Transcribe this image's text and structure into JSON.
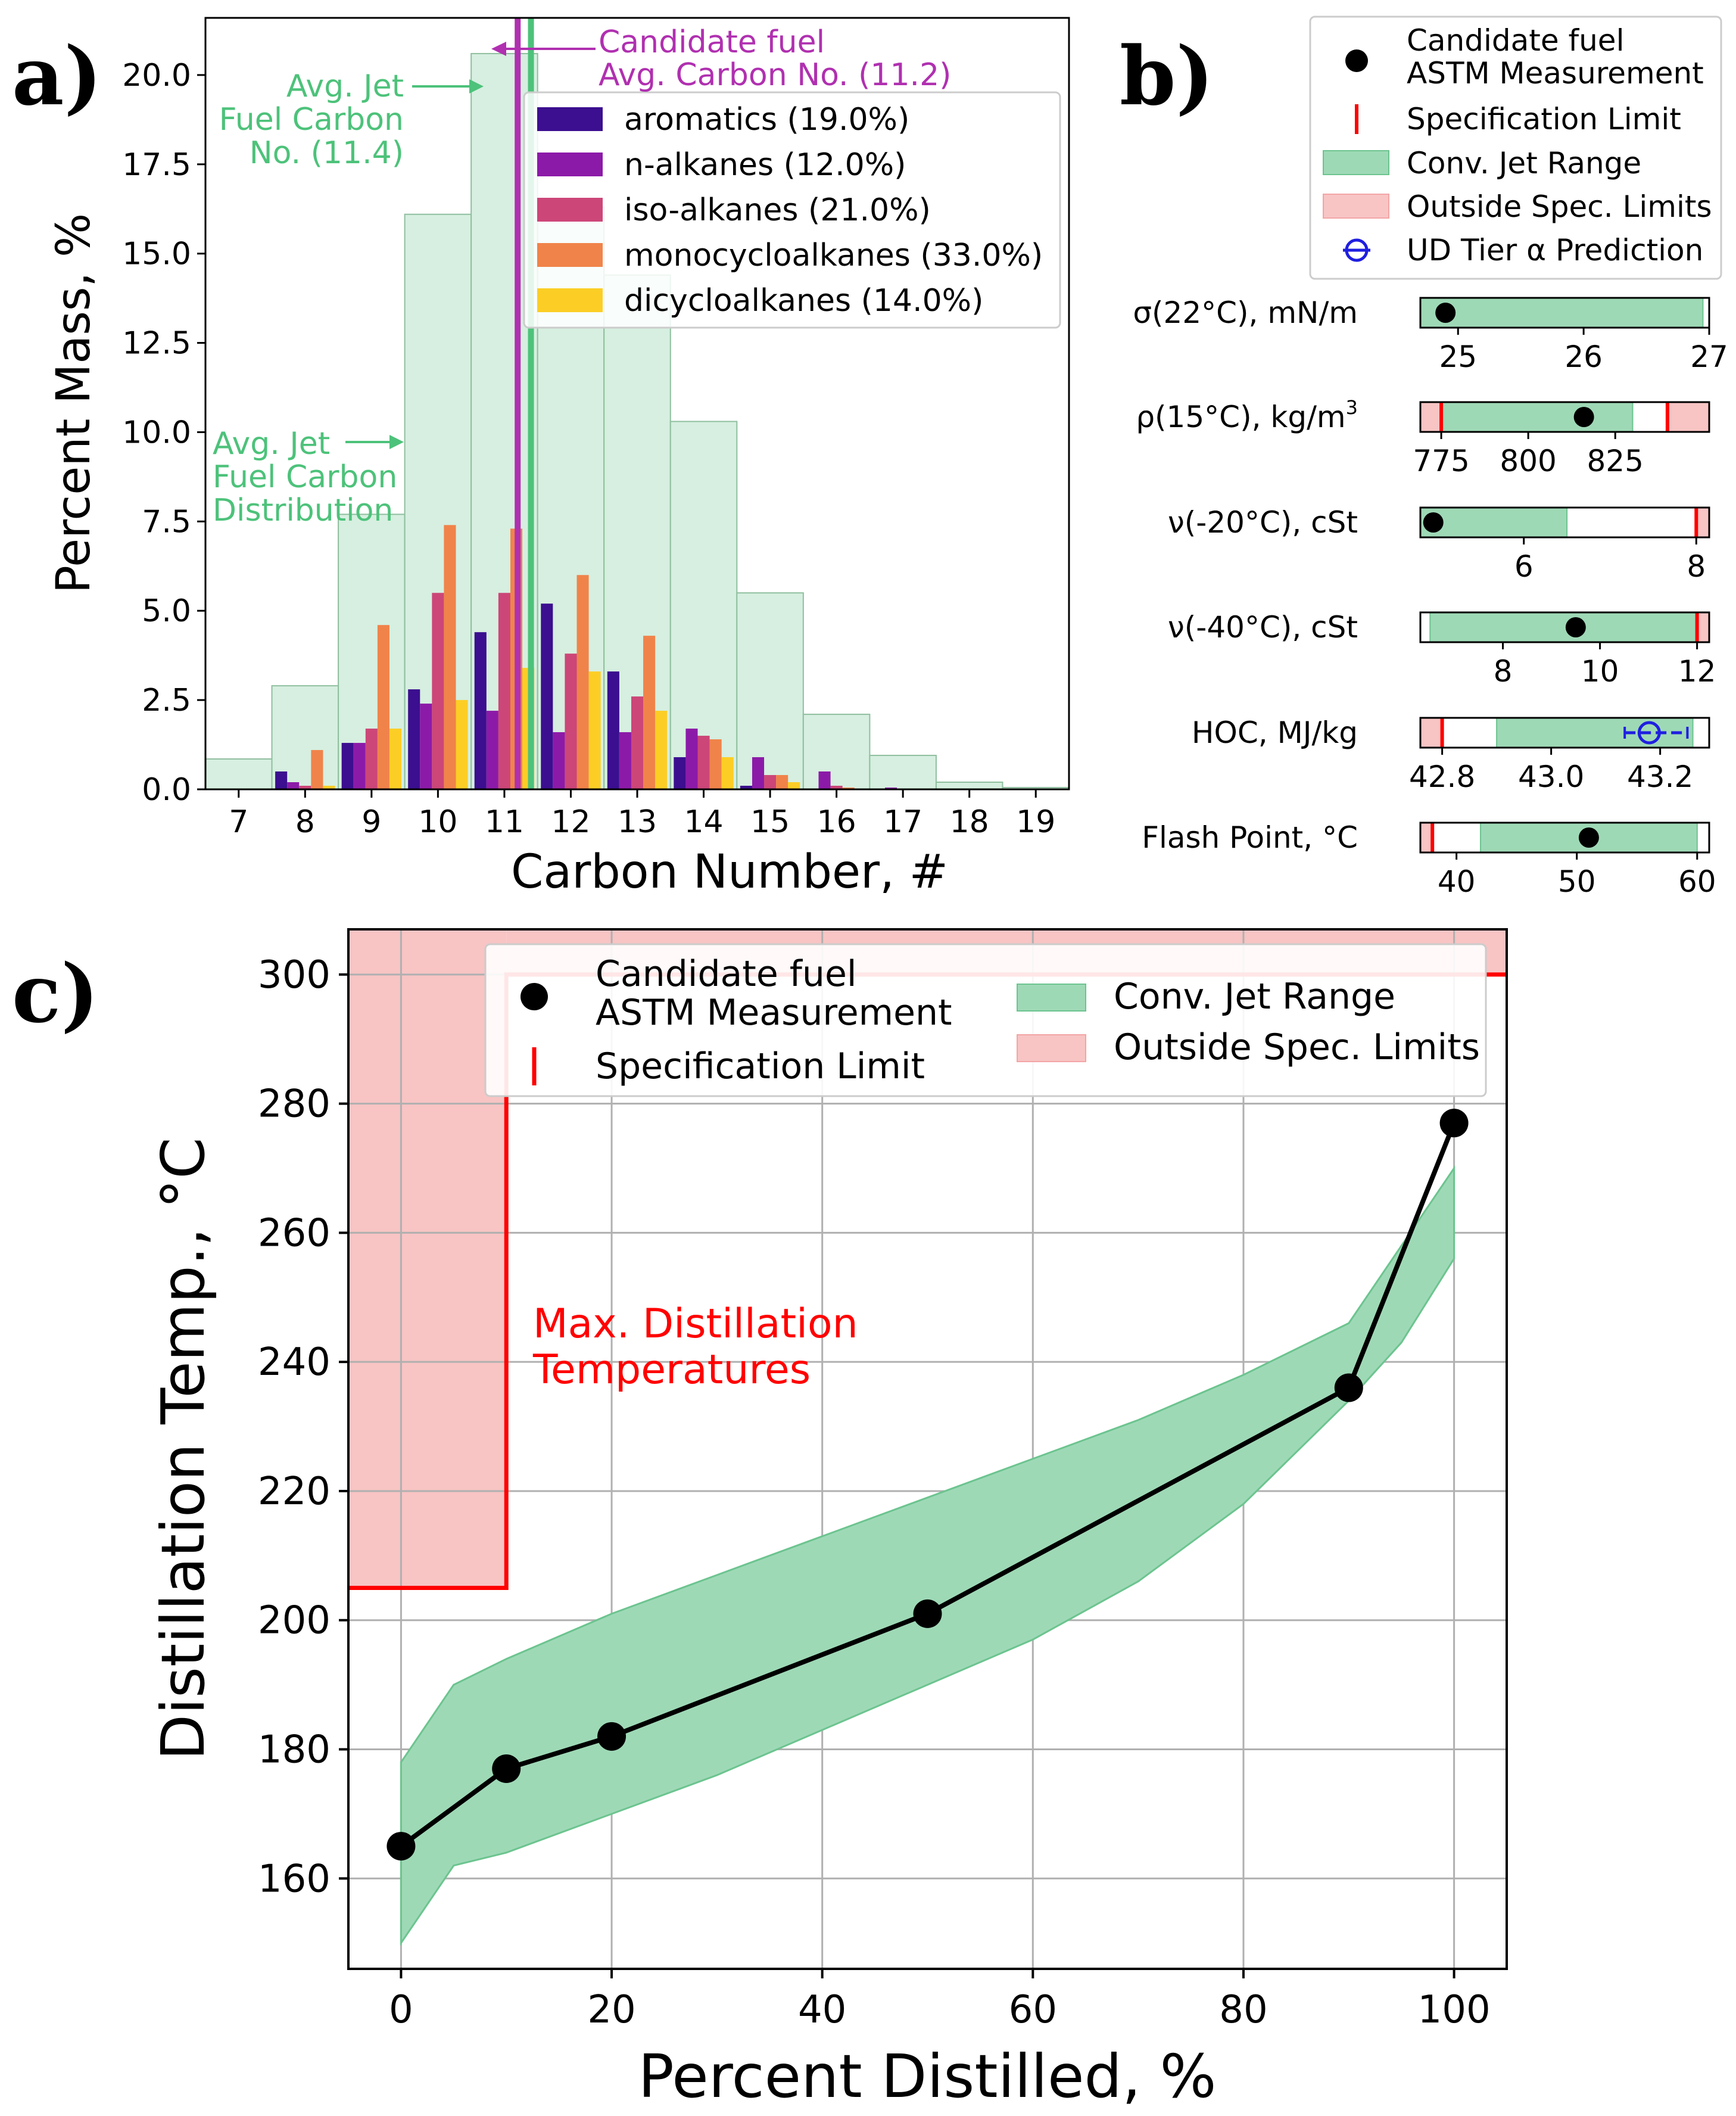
{
  "panels": {
    "a": "a)",
    "b": "b)",
    "c": "c)"
  },
  "colors": {
    "aromatics": "#3b0f8f",
    "n_alkanes": "#8c1aa8",
    "iso_alkanes": "#cc4678",
    "monocycloalkanes": "#f0834a",
    "dicycloalkanes": "#fcce25",
    "jet_fill": "#9ed9b6",
    "jet_hist": "#d6efe0",
    "spec_fill": "#f8c4c4",
    "spec_line": "#ff0000",
    "avg_jet": "#4dc27a",
    "avg_candidate": "#b030b0",
    "prediction": "#1f1fe0"
  },
  "chart_data": [
    {
      "type": "bar",
      "id": "a",
      "xlabel": "Carbon Number, #",
      "ylabel": "Percent Mass, %",
      "xlim": [
        6.5,
        19.5
      ],
      "ylim": [
        0,
        21.6
      ],
      "xticks": [
        7,
        8,
        9,
        10,
        11,
        12,
        13,
        14,
        15,
        16,
        17,
        18,
        19
      ],
      "yticks": [
        "0.0",
        "2.5",
        "5.0",
        "7.5",
        "10.0",
        "12.5",
        "15.0",
        "17.5",
        "20.0"
      ],
      "categories": [
        8,
        9,
        10,
        11,
        12,
        13,
        14,
        15,
        16,
        17
      ],
      "series": [
        {
          "name": "aromatics (19.0%)",
          "key": "aromatics",
          "values": [
            0.5,
            1.3,
            2.8,
            4.4,
            5.2,
            3.3,
            0.9,
            0.1,
            0.0,
            0.0
          ]
        },
        {
          "name": "n-alkanes (12.0%)",
          "key": "n_alkanes",
          "values": [
            0.2,
            1.3,
            2.4,
            2.2,
            1.6,
            1.6,
            1.7,
            0.9,
            0.5,
            0.05
          ]
        },
        {
          "name": "iso-alkanes (21.0%)",
          "key": "iso_alkanes",
          "values": [
            0.1,
            1.7,
            5.5,
            5.5,
            3.8,
            2.6,
            1.5,
            0.4,
            0.1,
            0.02
          ]
        },
        {
          "name": "monocycloalkanes (33.0%)",
          "key": "monocycloalkanes",
          "values": [
            1.1,
            4.6,
            7.4,
            7.3,
            6.0,
            4.3,
            1.4,
            0.4,
            0.05,
            0.0
          ]
        },
        {
          "name": "dicycloalkanes (14.0%)",
          "key": "dicycloalkanes",
          "values": [
            0.1,
            1.7,
            2.5,
            3.4,
            3.3,
            2.2,
            0.9,
            0.2,
            0.0,
            0.0
          ]
        }
      ],
      "jet_distribution": {
        "bins": [
          7,
          8,
          9,
          10,
          11,
          12,
          13,
          14,
          15,
          16,
          17,
          18,
          19
        ],
        "values": [
          0.85,
          2.9,
          7.7,
          16.1,
          20.6,
          16.3,
          14.4,
          10.3,
          5.5,
          2.1,
          0.95,
          0.2,
          0.05
        ]
      },
      "avg_jet_carbon": 11.4,
      "avg_candidate_carbon": 11.2,
      "annotations": {
        "candidate_line1": "Candidate fuel",
        "candidate_line2": "Avg. Carbon No. (11.2)",
        "avg_jet_line1": "Avg. Jet",
        "avg_jet_line2": "Fuel Carbon",
        "avg_jet_line3": "No. (11.4)",
        "dist_line1": "Avg. Jet",
        "dist_line2": "Fuel Carbon",
        "dist_line3": "Distribution"
      }
    },
    {
      "type": "range",
      "id": "b",
      "legend": {
        "measurement_line1": "Candidate fuel",
        "measurement_line2": "ASTM Measurement",
        "spec": "Specification Limit",
        "conv": "Conv. Jet Range",
        "outside": "Outside Spec. Limits",
        "prediction": "UD Tier α Prediction"
      },
      "rows": [
        {
          "label": "σ(22°C), mN/m",
          "xlim": [
            24.7,
            27.0
          ],
          "conv": [
            24.7,
            26.95
          ],
          "measurement": 24.9,
          "spec_low": null,
          "spec_high": null,
          "ticks": [
            25,
            26,
            27
          ]
        },
        {
          "label": "ρ(15°C), kg/m",
          "sup": "3",
          "xlim": [
            769,
            852
          ],
          "conv": [
            775,
            830
          ],
          "measurement": 816,
          "spec_low": 775,
          "spec_high": 840,
          "ticks": [
            775,
            800,
            825
          ]
        },
        {
          "label": "ν(-20°C), cSt",
          "xlim": [
            4.8,
            8.15
          ],
          "conv": [
            4.8,
            6.5
          ],
          "measurement": 4.95,
          "spec_low": null,
          "spec_high": 8.0,
          "ticks": [
            6,
            8
          ]
        },
        {
          "label": "ν(-40°C), cSt",
          "xlim": [
            6.3,
            12.25
          ],
          "conv": [
            6.5,
            12.0
          ],
          "measurement": 9.5,
          "spec_low": null,
          "spec_high": 12.0,
          "ticks": [
            8,
            10,
            12
          ]
        },
        {
          "label": "HOC, MJ/kg",
          "xlim": [
            42.76,
            43.29
          ],
          "conv": [
            42.9,
            43.26
          ],
          "measurement": null,
          "prediction": 43.18,
          "prediction_err": [
            43.135,
            43.25
          ],
          "spec_low": 42.8,
          "spec_high": null,
          "ticks": [
            "42.8",
            "43.0",
            "43.2"
          ]
        },
        {
          "label": "Flash Point, °C",
          "xlim": [
            37,
            61
          ],
          "conv": [
            42,
            60
          ],
          "measurement": 51,
          "spec_low": 38,
          "spec_high": null,
          "ticks": [
            40,
            50,
            60
          ]
        }
      ]
    },
    {
      "type": "line",
      "id": "c",
      "xlabel": "Percent Distilled, %",
      "ylabel": "Distillation Temp., °C",
      "xlim": [
        -5,
        105
      ],
      "ylim": [
        146,
        307
      ],
      "xticks": [
        0,
        20,
        40,
        60,
        80,
        100
      ],
      "yticks": [
        160,
        180,
        200,
        220,
        240,
        260,
        280,
        300
      ],
      "measurement": {
        "x": [
          0,
          10,
          20,
          50,
          90,
          100
        ],
        "y": [
          165,
          177,
          182,
          201,
          236,
          277
        ]
      },
      "conv_range": {
        "x": [
          0,
          5,
          10,
          20,
          30,
          40,
          50,
          60,
          70,
          80,
          90,
          95,
          100
        ],
        "upper": [
          178,
          190,
          194,
          201,
          207,
          213,
          219,
          225,
          231,
          238,
          246,
          258,
          270
        ],
        "lower": [
          150,
          162,
          164,
          170,
          176,
          183,
          190,
          197,
          206,
          218,
          234,
          243,
          256
        ]
      },
      "spec_regions": [
        {
          "x": [
            -5,
            10
          ],
          "y": [
            205,
            307
          ]
        },
        {
          "x": [
            10,
            105
          ],
          "y": [
            300,
            307
          ]
        }
      ],
      "spec_text_line1": "Max. Distillation",
      "spec_text_line2": "Temperatures",
      "legend": {
        "measurement_line1": "Candidate fuel",
        "measurement_line2": "ASTM Measurement",
        "spec": "Specification Limit",
        "conv": "Conv. Jet Range",
        "outside": "Outside Spec. Limits"
      }
    }
  ]
}
